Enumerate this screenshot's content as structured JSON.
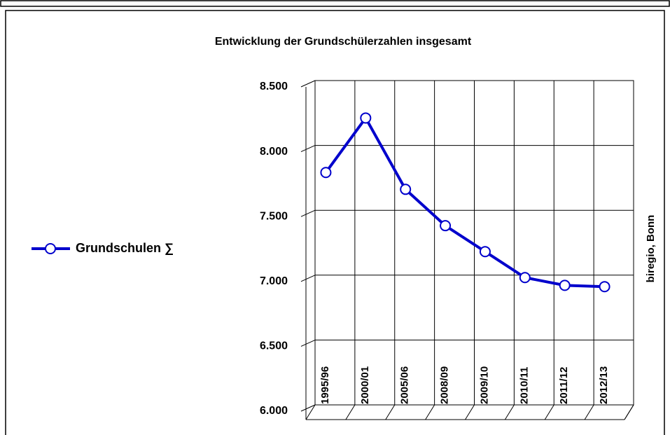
{
  "chart_data": {
    "type": "line",
    "title": "Entwicklung der Grundschülerzahlen insgesamt",
    "categories": [
      "1995/96",
      "2000/01",
      "2005/06",
      "2008/09",
      "2009/10",
      "2010/11",
      "2011/12",
      "2012/13"
    ],
    "series": [
      {
        "name": "Grundschulen ∑",
        "color": "#0000cc",
        "values": [
          7840,
          8260,
          7710,
          7430,
          7230,
          7030,
          6970,
          6960
        ]
      }
    ],
    "ylim": [
      6000,
      8500
    ],
    "yticks": [
      {
        "value": 6000,
        "label": "6.000"
      },
      {
        "value": 6500,
        "label": "6.500"
      },
      {
        "value": 7000,
        "label": "7.000"
      },
      {
        "value": 7500,
        "label": "7.500"
      },
      {
        "value": 8000,
        "label": "8.000"
      },
      {
        "value": 8500,
        "label": "8.500"
      }
    ],
    "annotation": "biregio, Bonn",
    "grid": true,
    "legend": "left"
  }
}
